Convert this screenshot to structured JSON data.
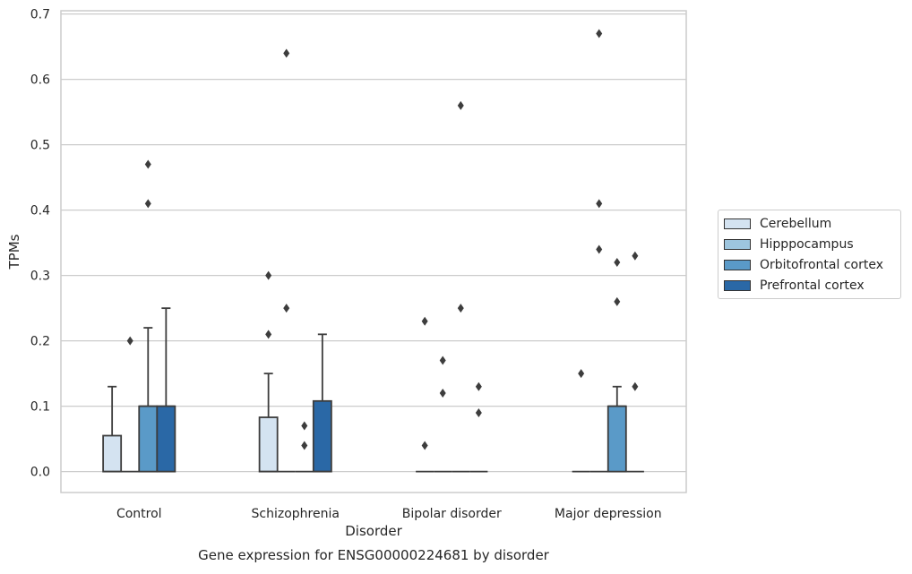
{
  "chart_data": {
    "type": "box",
    "title": "Gene expression for ENSG00000224681 by disorder",
    "xlabel": "Disorder",
    "ylabel": "TPMs",
    "categories": [
      "Control",
      "Schizophrenia",
      "Bipolar disorder",
      "Major depression"
    ],
    "ylim": [
      -0.032,
      0.705
    ],
    "yticks": [
      "0.0",
      "0.1",
      "0.2",
      "0.3",
      "0.4",
      "0.5",
      "0.6",
      "0.7"
    ],
    "grid": "horizontal",
    "legend_position": "right",
    "series": [
      {
        "name": "Cerebellum",
        "color": "#d4e3f1",
        "boxes": [
          {
            "q1": 0,
            "median": 0,
            "q3": 0.055,
            "whisker_low": 0,
            "whisker_high": 0.13,
            "outliers": []
          },
          {
            "q1": 0,
            "median": 0,
            "q3": 0.083,
            "whisker_low": 0,
            "whisker_high": 0.15,
            "outliers": [
              0.21,
              0.3
            ]
          },
          {
            "q1": 0,
            "median": 0,
            "q3": 0,
            "whisker_low": 0,
            "whisker_high": 0,
            "outliers": [
              0.04,
              0.23
            ]
          },
          {
            "q1": 0,
            "median": 0,
            "q3": 0,
            "whisker_low": 0,
            "whisker_high": 0,
            "outliers": [
              0.15
            ]
          }
        ]
      },
      {
        "name": "Hipppocampus",
        "color": "#9dc5de",
        "boxes": [
          {
            "q1": 0,
            "median": 0,
            "q3": 0,
            "whisker_low": 0,
            "whisker_high": 0,
            "outliers": [
              0.2
            ]
          },
          {
            "q1": 0,
            "median": 0,
            "q3": 0,
            "whisker_low": 0,
            "whisker_high": 0,
            "outliers": [
              0.25,
              0.64
            ]
          },
          {
            "q1": 0,
            "median": 0,
            "q3": 0,
            "whisker_low": 0,
            "whisker_high": 0,
            "outliers": [
              0.12,
              0.17
            ]
          },
          {
            "q1": 0,
            "median": 0,
            "q3": 0,
            "whisker_low": 0,
            "whisker_high": 0,
            "outliers": [
              0.34,
              0.41,
              0.67
            ]
          }
        ]
      },
      {
        "name": "Orbitofrontal cortex",
        "color": "#5a9ac8",
        "boxes": [
          {
            "q1": 0,
            "median": 0.1,
            "q3": 0.1,
            "whisker_low": 0,
            "whisker_high": 0.22,
            "outliers": [
              0.41,
              0.47
            ]
          },
          {
            "q1": 0,
            "median": 0,
            "q3": 0,
            "whisker_low": 0,
            "whisker_high": 0,
            "outliers": [
              0.04,
              0.07
            ]
          },
          {
            "q1": 0,
            "median": 0,
            "q3": 0,
            "whisker_low": 0,
            "whisker_high": 0,
            "outliers": [
              0.25,
              0.56
            ]
          },
          {
            "q1": 0,
            "median": 0.1,
            "q3": 0.1,
            "whisker_low": 0,
            "whisker_high": 0.13,
            "outliers": [
              0.26,
              0.32
            ]
          }
        ]
      },
      {
        "name": "Prefrontal cortex",
        "color": "#2a68a6",
        "boxes": [
          {
            "q1": 0,
            "median": 0.1,
            "q3": 0.1,
            "whisker_low": 0,
            "whisker_high": 0.25,
            "outliers": []
          },
          {
            "q1": 0,
            "median": 0,
            "q3": 0.108,
            "whisker_low": 0,
            "whisker_high": 0.21,
            "outliers": []
          },
          {
            "q1": 0,
            "median": 0,
            "q3": 0,
            "whisker_low": 0,
            "whisker_high": 0,
            "outliers": [
              0.09,
              0.13
            ]
          },
          {
            "q1": 0,
            "median": 0,
            "q3": 0,
            "whisker_low": 0,
            "whisker_high": 0,
            "outliers": [
              0.13,
              0.33
            ]
          }
        ]
      }
    ]
  }
}
